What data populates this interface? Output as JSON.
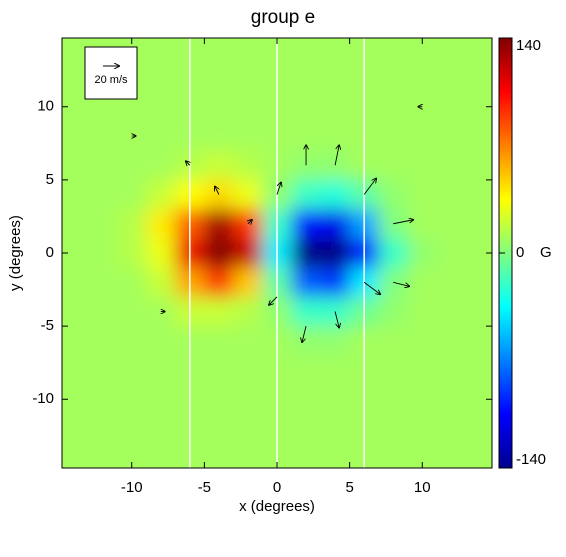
{
  "chart_data": {
    "type": "heatmap",
    "title": "group e",
    "x_label": "x (degrees)",
    "y_label": "y (degrees)",
    "x": [
      -14,
      -12,
      -10,
      -8,
      -6,
      -4,
      -2,
      0,
      2,
      4,
      6,
      8,
      10,
      12,
      14
    ],
    "y": [
      12,
      10,
      8,
      6,
      4,
      2,
      0,
      -2,
      -4,
      -6,
      -8,
      -10,
      -12
    ],
    "z": [
      [
        10,
        10,
        10,
        10,
        10,
        10,
        10,
        10,
        10,
        10,
        10,
        10,
        10,
        10,
        10
      ],
      [
        10,
        10,
        10,
        10,
        10,
        10,
        10,
        10,
        10,
        10,
        10,
        10,
        10,
        10,
        10
      ],
      [
        10,
        10,
        10,
        10,
        10,
        10,
        10,
        10,
        10,
        10,
        10,
        10,
        10,
        10,
        10
      ],
      [
        10,
        10,
        10,
        10,
        15,
        20,
        15,
        10,
        5,
        5,
        10,
        10,
        10,
        10,
        10
      ],
      [
        10,
        10,
        10,
        20,
        35,
        45,
        30,
        5,
        -20,
        -25,
        -10,
        5,
        10,
        10,
        10
      ],
      [
        10,
        10,
        15,
        40,
        80,
        130,
        90,
        -20,
        -100,
        -110,
        -60,
        0,
        10,
        10,
        10
      ],
      [
        10,
        10,
        15,
        30,
        110,
        140,
        120,
        -40,
        -140,
        -140,
        -100,
        -20,
        5,
        10,
        10
      ],
      [
        10,
        10,
        10,
        20,
        60,
        90,
        50,
        -10,
        -80,
        -90,
        -40,
        0,
        10,
        10,
        10
      ],
      [
        10,
        10,
        10,
        10,
        20,
        20,
        15,
        5,
        -20,
        -20,
        -5,
        5,
        10,
        10,
        10
      ],
      [
        10,
        10,
        10,
        10,
        10,
        10,
        10,
        10,
        5,
        5,
        10,
        10,
        10,
        10,
        10
      ],
      [
        10,
        10,
        10,
        10,
        10,
        10,
        10,
        10,
        10,
        10,
        10,
        10,
        10,
        10,
        10
      ],
      [
        10,
        10,
        10,
        10,
        10,
        10,
        10,
        10,
        10,
        10,
        10,
        10,
        10,
        10,
        10
      ],
      [
        10,
        10,
        10,
        10,
        10,
        10,
        10,
        10,
        10,
        10,
        10,
        10,
        10,
        10,
        10
      ]
    ],
    "xlim": [
      -14.8,
      14.8
    ],
    "ylim": [
      -14.7,
      14.7
    ],
    "xticks": [
      -10,
      -5,
      0,
      5,
      10
    ],
    "yticks": [
      10,
      5,
      0,
      -5,
      -10
    ],
    "vlines": [
      -6,
      0,
      6
    ],
    "colorbar": {
      "label": "G",
      "lim": [
        -140,
        140
      ],
      "ticks": [
        140,
        0,
        -140
      ]
    },
    "vectors": {
      "x": [
        -10,
        -6,
        -4,
        -2,
        0,
        2,
        4,
        6,
        8,
        6,
        4,
        2,
        0,
        8,
        -8,
        10
      ],
      "y": [
        8,
        6,
        4,
        2,
        4,
        6,
        6,
        4,
        2,
        -2,
        -4,
        -5,
        -3,
        -2,
        -4,
        10
      ],
      "u": [
        1,
        -1,
        -1,
        1,
        1,
        0,
        1,
        3,
        5,
        4,
        1,
        -1,
        -2,
        4,
        1,
        -1
      ],
      "v": [
        0,
        1,
        2,
        1,
        3,
        5,
        5,
        4,
        1,
        -3,
        -4,
        -4,
        -2,
        -1,
        0,
        0
      ],
      "scale_label": "20 m/s",
      "scale_value": 20
    }
  }
}
